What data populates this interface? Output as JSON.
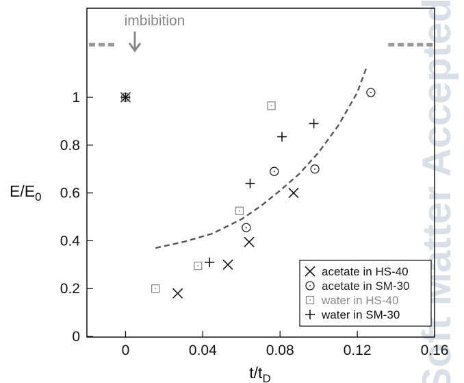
{
  "watermark": "Soft Matter Accepted",
  "chart_data": {
    "type": "scatter",
    "title": "",
    "xlabel": "t/t",
    "xlabel_sub": "D",
    "ylabel": "E/E",
    "ylabel_sub": "0",
    "xlim": [
      -0.02,
      0.16
    ],
    "ylim": [
      0,
      1.35
    ],
    "xticks": [
      0,
      0.04,
      0.08,
      0.12,
      0.16
    ],
    "xtick_labels": [
      "0",
      "0.04",
      "0.08",
      "0.12",
      "0.16"
    ],
    "yticks": [
      0,
      0.2,
      0.4,
      0.6,
      0.8,
      1
    ],
    "ytick_labels": [
      "0",
      "0.2",
      "0.4",
      "0.6",
      "0.8",
      "1"
    ],
    "grid": false,
    "legend_position": "bottom-right",
    "annotation": {
      "label": "imbibition",
      "x": 0.004,
      "dashed_level": 1.22,
      "dashed_left_x": [
        -0.02,
        -0.005
      ],
      "dashed_right_x": [
        0.136,
        0.16
      ]
    },
    "series": [
      {
        "name": "acetate in HS-40",
        "marker": "x",
        "color": "#111111",
        "points": [
          [
            0,
            1.0
          ],
          [
            0.027,
            0.18
          ],
          [
            0.053,
            0.3
          ],
          [
            0.064,
            0.395
          ],
          [
            0.087,
            0.6
          ]
        ]
      },
      {
        "name": "acetate in SM-30",
        "marker": "circle-dot",
        "color": "#222222",
        "points": [
          [
            0,
            1.0
          ],
          [
            0.0625,
            0.455
          ],
          [
            0.077,
            0.69
          ],
          [
            0.098,
            0.7
          ],
          [
            0.127,
            1.02
          ]
        ]
      },
      {
        "name": "water in HS-40",
        "marker": "square-dot",
        "color": "#8a8a8a",
        "points": [
          [
            0,
            1.0
          ],
          [
            0.0155,
            0.2
          ],
          [
            0.0375,
            0.295
          ],
          [
            0.059,
            0.525
          ],
          [
            0.0755,
            0.965
          ]
        ]
      },
      {
        "name": "water in SM-30",
        "marker": "plus",
        "color": "#111111",
        "points": [
          [
            0,
            1.0
          ],
          [
            0.0435,
            0.31
          ],
          [
            0.0645,
            0.64
          ],
          [
            0.081,
            0.835
          ],
          [
            0.0975,
            0.89
          ]
        ]
      }
    ],
    "fit_curve": {
      "style": "dashed",
      "color": "#555555",
      "x": [
        0.0155,
        0.03,
        0.045,
        0.06,
        0.07,
        0.08,
        0.09,
        0.1,
        0.11,
        0.12,
        0.125
      ],
      "y": [
        0.37,
        0.395,
        0.43,
        0.49,
        0.545,
        0.61,
        0.68,
        0.77,
        0.88,
        1.02,
        1.13
      ]
    }
  }
}
